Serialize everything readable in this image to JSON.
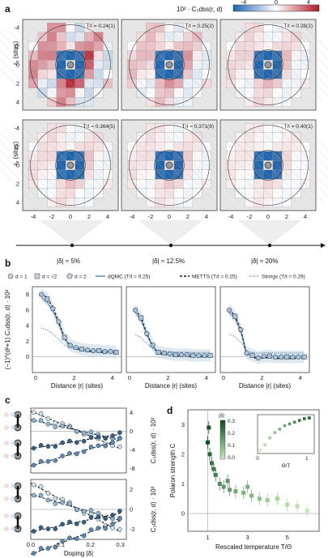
{
  "panel_a": {
    "letter": "a",
    "colorbar": {
      "label": "10² · C₃dss(r, d)",
      "ticks": [
        "-4",
        "0",
        "4"
      ],
      "colors": [
        "#2b6cb0",
        "#ffffff",
        "#c0392b"
      ]
    },
    "temps": [
      "T/t = 0.24(1)",
      "T/t = 0.25(2)",
      "T/t = 0.28(2)",
      "T/t = 0.364(5)",
      "T/t = 0.371(9)",
      "T/t = 0.40(1)"
    ],
    "axis_ticks": [
      "-4",
      "-2",
      "0",
      "2",
      "4"
    ],
    "ylabel": "rᵧ (sites)",
    "xlabel": "rₓ (sites)",
    "dopings": [
      "|δ| ≈ 5%",
      "|δ| ≈ 12.5%",
      "|δ| ≈ 20%"
    ]
  },
  "panel_b": {
    "letter": "b",
    "legend": [
      "d = 1",
      "d = √2",
      "d = 2",
      "dQMC (T/t = 0.25)",
      "METTS (T/t = 0.25)",
      "Strings (T/t ≈ 0.29)"
    ],
    "ylabel": "(−1)^(d²+1) C₃dss(r, d) · 10²",
    "yticks": [
      "0",
      "2",
      "4",
      "6",
      "8"
    ],
    "xticks": [
      "0",
      "2",
      "4"
    ],
    "xlabel": "Distance |r| (sites)"
  },
  "panel_c": {
    "letter": "c",
    "xlabel": "Doping |δ|",
    "xticks": [
      "0.0",
      "0.1",
      "0.2",
      "0.3"
    ],
    "top_yticks": [
      "4",
      "0",
      "-4",
      "-8"
    ],
    "bottom_yticks": [
      "2",
      "0",
      "-2"
    ],
    "ylabel": "C₃dss(r, d) · 10²"
  },
  "panel_d": {
    "letter": "d",
    "ylabel": "Polaron strength C",
    "xlabel": "Rescaled temperature T/Θ",
    "yticks": [
      "0",
      "1",
      "2",
      "3"
    ],
    "xticks": [
      "1",
      "3",
      "5"
    ],
    "colorbar_label": "|δ|",
    "colorbar_ticks": [
      "0.3",
      "0.2",
      "0.1",
      "0.0"
    ],
    "inset_xlabel": "Θ/T",
    "inset_xticks": [
      "0",
      "1"
    ]
  }
}
